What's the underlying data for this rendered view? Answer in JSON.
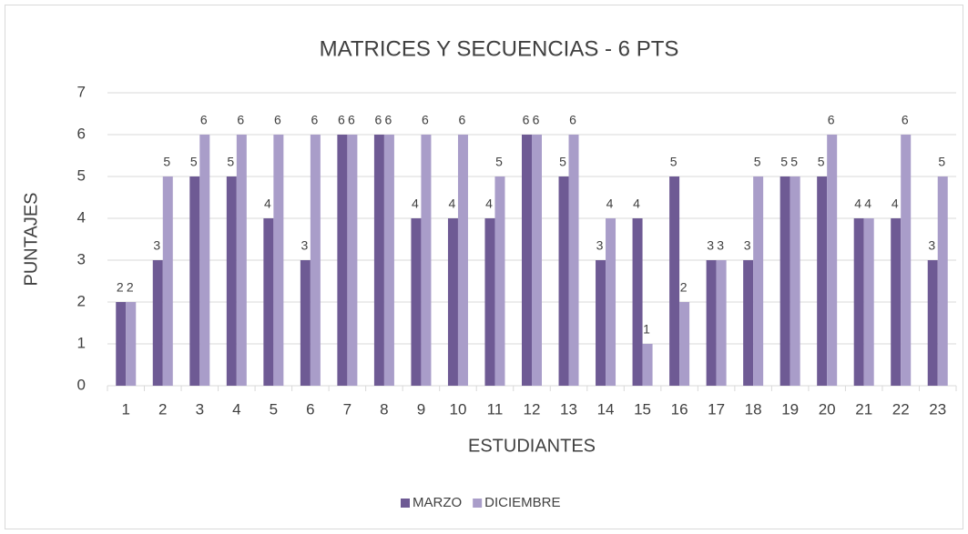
{
  "chart_data": {
    "type": "bar",
    "title": "MATRICES Y SECUENCIAS - 6 PTS",
    "x_label": "ESTUDIANTES",
    "y_label": "PUNTAJES",
    "categories": [
      "1",
      "2",
      "3",
      "4",
      "5",
      "6",
      "7",
      "8",
      "9",
      "10",
      "11",
      "12",
      "13",
      "14",
      "15",
      "16",
      "17",
      "18",
      "19",
      "20",
      "21",
      "22",
      "23"
    ],
    "series": [
      {
        "name": "MARZO",
        "color": "#6e5a94",
        "values": [
          2,
          3,
          5,
          5,
          4,
          3,
          6,
          6,
          4,
          4,
          4,
          6,
          5,
          3,
          4,
          5,
          3,
          3,
          5,
          5,
          4,
          4,
          3
        ]
      },
      {
        "name": "DICIEMBRE",
        "color": "#a99dc9",
        "values": [
          2,
          5,
          6,
          6,
          6,
          6,
          6,
          6,
          6,
          6,
          5,
          6,
          6,
          4,
          1,
          2,
          3,
          5,
          5,
          6,
          4,
          6,
          5
        ]
      }
    ],
    "ylim": [
      0,
      7
    ],
    "yticks": [
      0,
      1,
      2,
      3,
      4,
      5,
      6,
      7
    ],
    "grid": true,
    "legend": "bottom"
  }
}
